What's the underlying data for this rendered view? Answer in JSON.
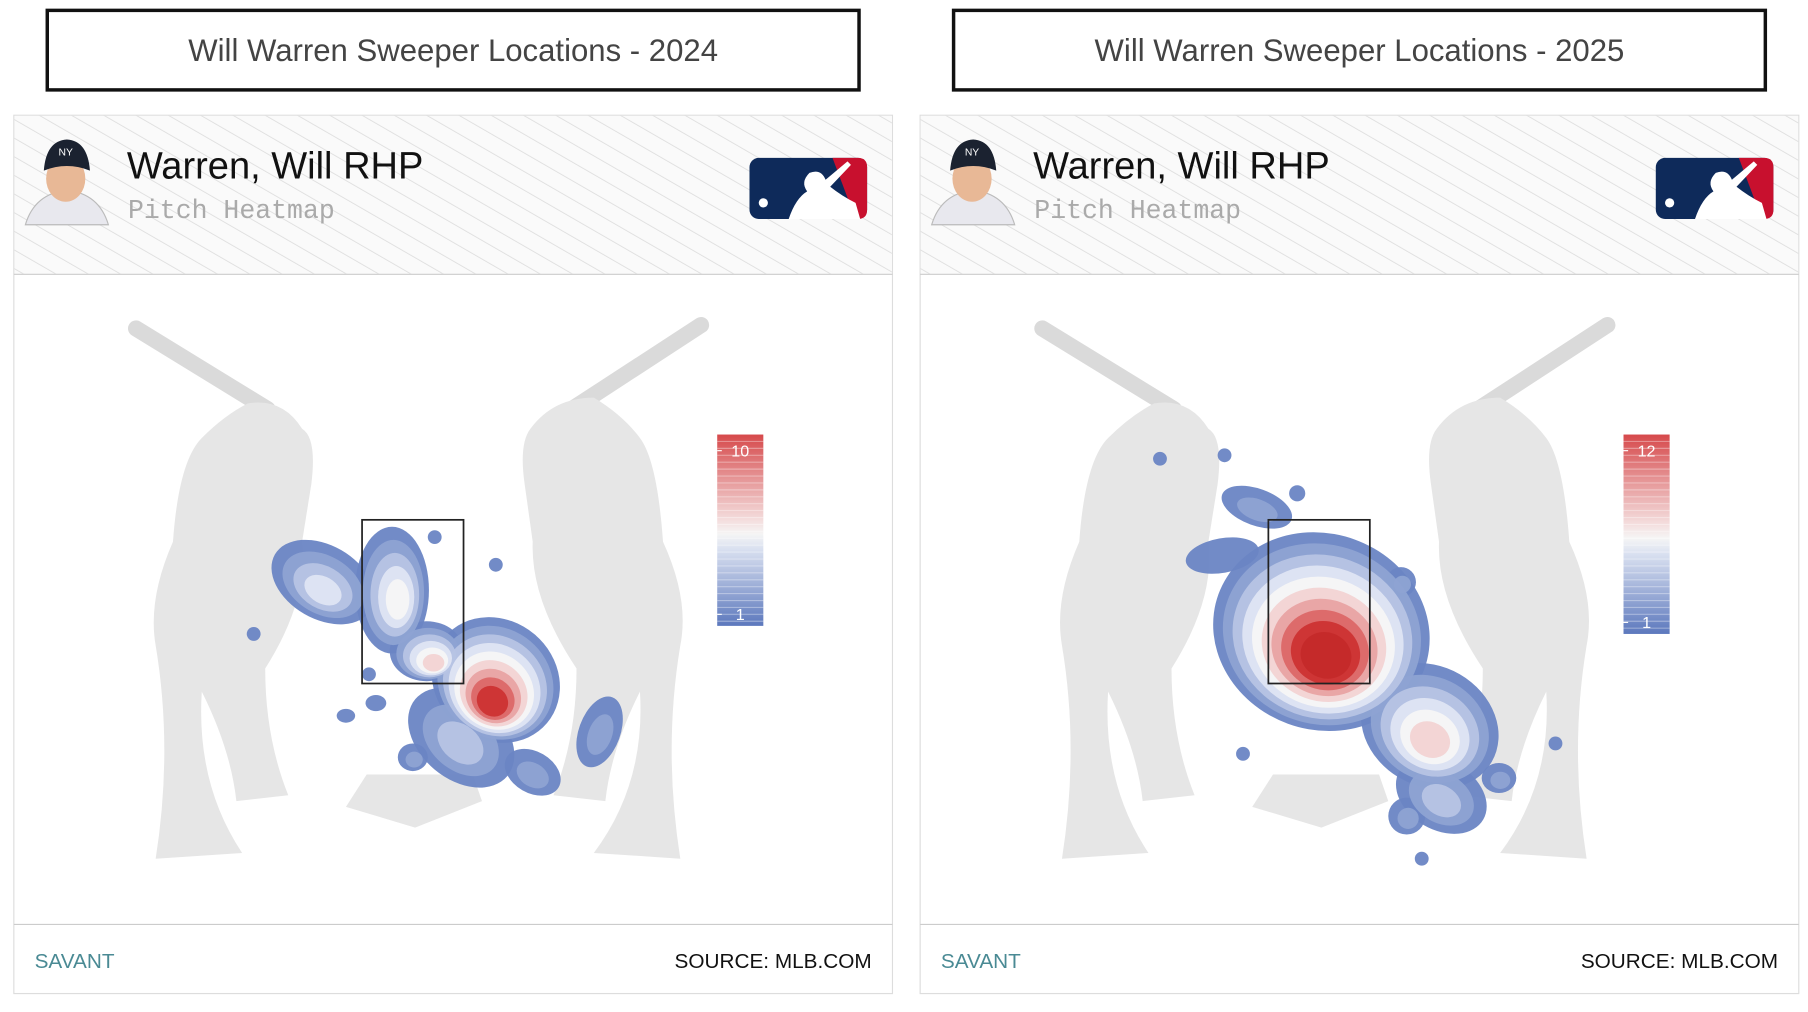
{
  "chart_data": [
    {
      "type": "heatmap",
      "title": "Will Warren Sweeper Locations - 2024",
      "player": "Warren, Will RHP",
      "subtitle": "Pitch Heatmap",
      "colorbar_ticks": [
        1,
        10
      ],
      "brand": "SAVANT",
      "source": "SOURCE: MLB.COM"
    },
    {
      "type": "heatmap",
      "title": "Will Warren Sweeper Locations - 2025",
      "player": "Warren, Will RHP",
      "subtitle": "Pitch Heatmap",
      "colorbar_ticks": [
        1,
        12
      ],
      "brand": "SAVANT",
      "source": "SOURCE: MLB.COM"
    }
  ]
}
